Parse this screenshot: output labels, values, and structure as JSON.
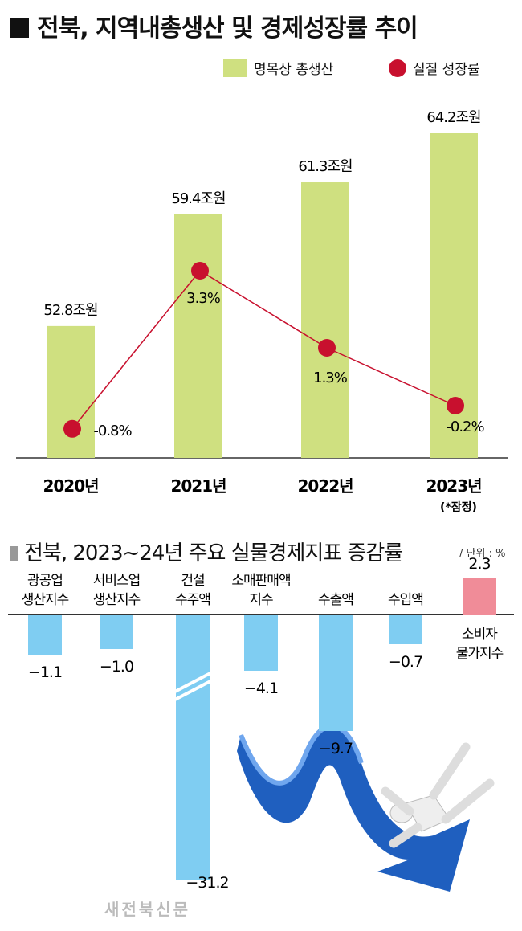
{
  "chart_data": [
    {
      "type": "bar+line",
      "title": "전북, 지역내총생산 및 경제성장률 추이",
      "categories": [
        "2020년",
        "2021년",
        "2022년",
        "2023년"
      ],
      "category_notes": [
        "",
        "",
        "",
        "(*잠정)"
      ],
      "series": [
        {
          "name": "명목상 총생산",
          "type": "bar",
          "values": [
            52.8,
            59.4,
            61.3,
            64.2
          ],
          "labels": [
            "52.8조원",
            "59.4조원",
            "61.3조원",
            "64.2조원"
          ],
          "color": "#cfe080"
        },
        {
          "name": "실질 성장률",
          "type": "line",
          "values": [
            -0.8,
            3.3,
            1.3,
            -0.2
          ],
          "labels": [
            "-0.8%",
            "3.3%",
            "1.3%",
            "-0.2%"
          ],
          "color": "#c8102e"
        }
      ],
      "legend": "top-right",
      "grid": false
    },
    {
      "type": "bar",
      "title": "전북, 2023~24년 주요 실물경제지표 증감률",
      "unit": "/ 단위 : %",
      "categories": [
        [
          "광공업",
          "생산지수"
        ],
        [
          "서비스업",
          "생산지수"
        ],
        [
          "건설",
          "수주액"
        ],
        [
          "소매판매액",
          "지수"
        ],
        [
          "수출액"
        ],
        [
          "수입액"
        ],
        [
          "소비자",
          "물가지수"
        ]
      ],
      "values": [
        -1.1,
        -1.0,
        -31.2,
        -4.1,
        -9.7,
        -0.7,
        2.3
      ],
      "labels": [
        "−1.1",
        "−1.0",
        "−31.2",
        "−4.1",
        "−9.7",
        "−0.7",
        "2.3"
      ],
      "colors": {
        "negative": "#7fcdf2",
        "positive": "#f08c98"
      },
      "broken_axis_bar": "건설 수주액"
    }
  ],
  "watermark": "새전북신문"
}
